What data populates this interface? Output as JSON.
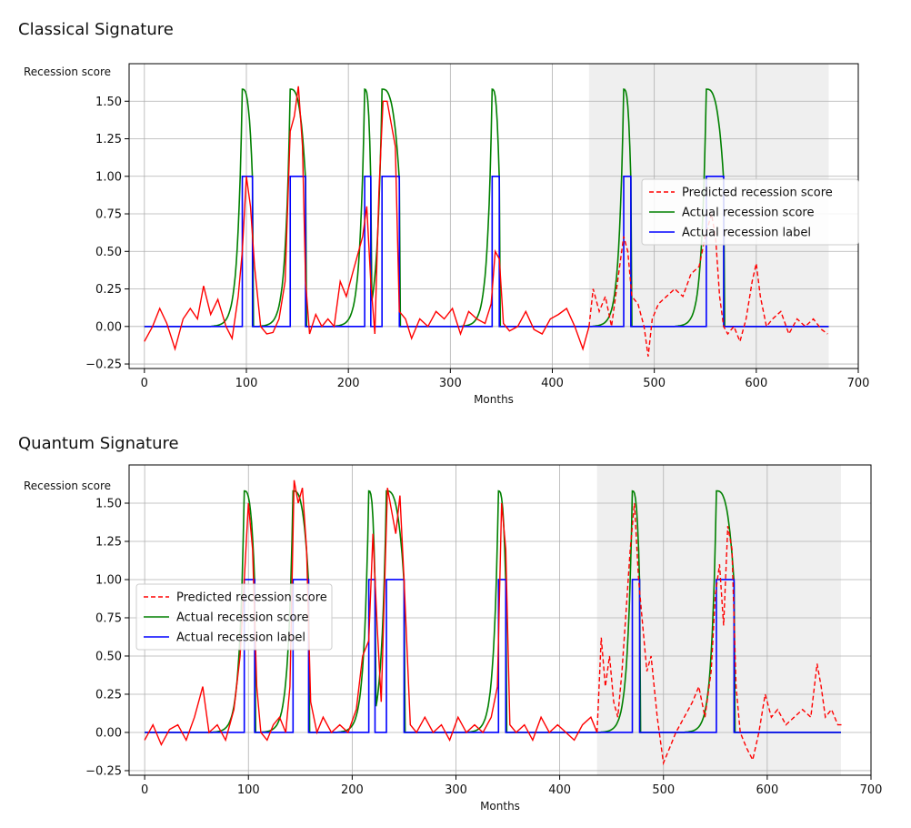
{
  "chart_data": [
    {
      "type": "line",
      "title": "Classical Signature",
      "xlabel": "Months",
      "ylabel": "Recession score",
      "xlim": [
        -15,
        700
      ],
      "ylim": [
        -0.28,
        1.75
      ],
      "xticks": [
        0,
        100,
        200,
        300,
        400,
        500,
        600,
        700
      ],
      "yticks": [
        -0.25,
        0.0,
        0.25,
        0.5,
        0.75,
        1.0,
        1.25,
        1.5
      ],
      "ytick_labels": [
        "−0.25",
        "0.00",
        "0.25",
        "0.50",
        "0.75",
        "1.00",
        "1.25",
        "1.50"
      ],
      "grid": true,
      "shaded_region": [
        436,
        671
      ],
      "legend_position": "center-right",
      "recessions": [
        [
          96,
          106
        ],
        [
          143,
          158
        ],
        [
          216,
          222
        ],
        [
          233,
          250
        ],
        [
          341,
          348
        ],
        [
          470,
          477
        ],
        [
          551,
          568
        ]
      ],
      "series": [
        {
          "name": "Predicted recession score",
          "color": "#ff0000",
          "style": "dashed"
        },
        {
          "name": "Actual recession score",
          "color": "#008000",
          "style": "solid"
        },
        {
          "name": "Actual recession label",
          "color": "#0000ff",
          "style": "solid"
        }
      ],
      "predicted": {
        "solid_until": 436,
        "x": [
          0,
          8,
          15,
          22,
          30,
          38,
          45,
          52,
          58,
          65,
          72,
          80,
          86,
          92,
          96,
          100,
          104,
          108,
          114,
          120,
          126,
          132,
          138,
          143,
          147,
          151,
          155,
          158,
          162,
          168,
          174,
          180,
          186,
          192,
          198,
          204,
          210,
          214,
          218,
          222,
          226,
          230,
          234,
          238,
          242,
          246,
          250,
          256,
          262,
          270,
          278,
          286,
          294,
          302,
          310,
          318,
          326,
          334,
          340,
          344,
          348,
          352,
          358,
          366,
          374,
          382,
          390,
          398,
          406,
          414,
          422,
          430,
          436,
          440,
          446,
          452,
          458,
          464,
          470,
          474,
          478,
          484,
          490,
          494,
          498,
          504,
          512,
          520,
          528,
          536,
          544,
          550,
          556,
          560,
          564,
          568,
          572,
          578,
          584,
          590,
          596,
          600,
          604,
          610,
          616,
          624,
          632,
          640,
          648,
          656,
          664,
          670
        ],
        "y": [
          -0.1,
          0.0,
          0.12,
          0.02,
          -0.15,
          0.05,
          0.12,
          0.05,
          0.27,
          0.08,
          0.18,
          0.0,
          -0.08,
          0.2,
          0.5,
          1.0,
          0.8,
          0.4,
          0.0,
          -0.05,
          -0.04,
          0.05,
          0.3,
          1.3,
          1.4,
          1.6,
          1.2,
          0.3,
          -0.05,
          0.08,
          0.0,
          0.05,
          0.0,
          0.3,
          0.2,
          0.35,
          0.5,
          0.6,
          0.8,
          0.3,
          -0.05,
          0.9,
          1.5,
          1.5,
          1.35,
          1.2,
          0.1,
          0.05,
          -0.08,
          0.05,
          0.0,
          0.1,
          0.05,
          0.12,
          -0.05,
          0.1,
          0.05,
          0.02,
          0.15,
          0.5,
          0.45,
          0.02,
          -0.03,
          0.0,
          0.1,
          -0.02,
          -0.05,
          0.05,
          0.08,
          0.12,
          0.0,
          -0.15,
          0.0,
          0.25,
          0.1,
          0.2,
          0.0,
          0.3,
          0.6,
          0.5,
          0.2,
          0.15,
          0.0,
          -0.2,
          0.05,
          0.15,
          0.2,
          0.25,
          0.2,
          0.35,
          0.4,
          0.6,
          0.75,
          0.6,
          0.2,
          0.0,
          -0.05,
          0.0,
          -0.1,
          0.05,
          0.3,
          0.42,
          0.2,
          0.0,
          0.05,
          0.1,
          -0.05,
          0.05,
          0.0,
          0.05,
          -0.02,
          -0.05
        ]
      }
    },
    {
      "type": "line",
      "title": "Quantum Signature",
      "xlabel": "Months",
      "ylabel": "Recession score",
      "xlim": [
        -15,
        700
      ],
      "ylim": [
        -0.28,
        1.75
      ],
      "xticks": [
        0,
        100,
        200,
        300,
        400,
        500,
        600,
        700
      ],
      "yticks": [
        -0.25,
        0.0,
        0.25,
        0.5,
        0.75,
        1.0,
        1.25,
        1.5
      ],
      "ytick_labels": [
        "−0.25",
        "0.00",
        "0.25",
        "0.50",
        "0.75",
        "1.00",
        "1.25",
        "1.50"
      ],
      "grid": true,
      "shaded_region": [
        436,
        671
      ],
      "legend_position": "center-left",
      "recessions": [
        [
          96,
          106
        ],
        [
          143,
          158
        ],
        [
          216,
          222
        ],
        [
          233,
          250
        ],
        [
          341,
          348
        ],
        [
          470,
          477
        ],
        [
          551,
          568
        ]
      ],
      "series": [
        {
          "name": "Predicted recession score",
          "color": "#ff0000",
          "style": "dashed"
        },
        {
          "name": "Actual recession score",
          "color": "#008000",
          "style": "solid"
        },
        {
          "name": "Actual recession label",
          "color": "#0000ff",
          "style": "solid"
        }
      ],
      "predicted": {
        "solid_until": 436,
        "x": [
          0,
          8,
          16,
          24,
          32,
          40,
          48,
          56,
          62,
          70,
          78,
          86,
          92,
          96,
          100,
          104,
          108,
          112,
          118,
          124,
          130,
          136,
          140,
          144,
          148,
          152,
          156,
          160,
          166,
          172,
          180,
          188,
          196,
          204,
          210,
          216,
          220,
          224,
          228,
          234,
          238,
          242,
          246,
          250,
          256,
          262,
          270,
          278,
          286,
          294,
          302,
          310,
          318,
          326,
          334,
          340,
          344,
          348,
          352,
          358,
          366,
          374,
          382,
          390,
          398,
          406,
          414,
          422,
          430,
          436,
          440,
          444,
          448,
          452,
          456,
          460,
          464,
          468,
          472,
          476,
          480,
          484,
          488,
          494,
          500,
          506,
          512,
          520,
          528,
          534,
          540,
          546,
          550,
          554,
          558,
          562,
          566,
          570,
          574,
          580,
          586,
          592,
          598,
          604,
          610,
          618,
          626,
          634,
          642,
          648,
          652,
          656,
          662,
          668,
          672
        ],
        "y": [
          -0.05,
          0.05,
          -0.08,
          0.02,
          0.05,
          -0.05,
          0.1,
          0.3,
          0.0,
          0.05,
          -0.05,
          0.15,
          0.5,
          1.0,
          1.5,
          1.2,
          0.3,
          0.0,
          -0.05,
          0.05,
          0.1,
          0.0,
          0.3,
          1.65,
          1.5,
          1.6,
          1.2,
          0.2,
          0.0,
          0.1,
          0.0,
          0.05,
          0.0,
          0.15,
          0.5,
          0.6,
          1.3,
          0.7,
          0.2,
          1.6,
          1.45,
          1.3,
          1.55,
          1.0,
          0.05,
          0.0,
          0.1,
          0.0,
          0.05,
          -0.05,
          0.1,
          0.0,
          0.05,
          0.0,
          0.1,
          0.3,
          1.5,
          1.2,
          0.05,
          0.0,
          0.05,
          -0.05,
          0.1,
          0.0,
          0.05,
          0.0,
          -0.05,
          0.05,
          0.1,
          0.0,
          0.62,
          0.3,
          0.5,
          0.2,
          0.1,
          0.4,
          0.8,
          1.2,
          1.5,
          1.0,
          0.7,
          0.4,
          0.5,
          0.1,
          -0.2,
          -0.1,
          0.0,
          0.1,
          0.2,
          0.3,
          0.1,
          0.4,
          0.9,
          1.1,
          0.7,
          1.35,
          1.2,
          0.3,
          0.0,
          -0.1,
          -0.18,
          0.0,
          0.25,
          0.1,
          0.15,
          0.05,
          0.1,
          0.15,
          0.1,
          0.45,
          0.3,
          0.1,
          0.15,
          0.05,
          0.05
        ]
      }
    }
  ]
}
